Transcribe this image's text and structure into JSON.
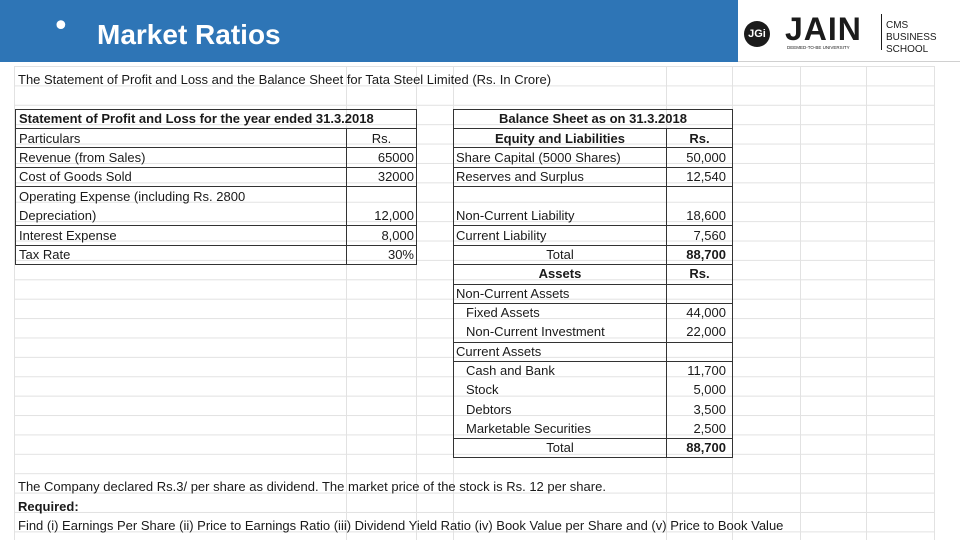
{
  "header": {
    "bullet": "•",
    "title": "Market Ratios"
  },
  "logo": {
    "mark": "JGi",
    "name": "JAIN",
    "tagline": "DEEMED-TO-BE UNIVERSITY",
    "school_line1": "CMS BUSINESS",
    "school_line2": "SCHOOL"
  },
  "intro": "The Statement of Profit and Loss and the Balance Sheet for Tata Steel Limited (Rs. In Crore)",
  "pl": {
    "title": "Statement of Profit and Loss for the year ended 31.3.2018",
    "col_particulars": "Particulars",
    "col_rs": "Rs.",
    "rows": [
      {
        "label": "Revenue (from Sales)",
        "value": "65000"
      },
      {
        "label": "Cost of Goods Sold",
        "value": "32000"
      },
      {
        "label": "Operating Expense (including Rs. 2800",
        "label2": "Depreciation)",
        "value": "12,000"
      },
      {
        "label": "Interest Expense",
        "value": "8,000"
      },
      {
        "label": "Tax Rate",
        "value": "30%"
      }
    ]
  },
  "bs": {
    "title": "Balance Sheet as on 31.3.2018",
    "eq_header": "Equity and Liabilities",
    "col_rs": "Rs.",
    "liabilities": [
      {
        "label": "Share Capital (5000 Shares)",
        "value": "50,000"
      },
      {
        "label": "Reserves and Surplus",
        "value": "12,540"
      },
      {
        "label": "Non-Current Liability",
        "value": "18,600"
      },
      {
        "label": "Current Liability",
        "value": "7,560"
      }
    ],
    "total_label": "Total",
    "total_value": "88,700",
    "assets_header": "Assets",
    "assets_rs": "Rs.",
    "noncurrent_header": "Non-Current Assets",
    "noncurrent": [
      {
        "label": "Fixed Assets",
        "value": "44,000"
      },
      {
        "label": "Non-Current Investment",
        "value": "22,000"
      }
    ],
    "current_header": "Current Assets",
    "current": [
      {
        "label": "Cash and Bank",
        "value": "11,700"
      },
      {
        "label": "Stock",
        "value": "5,000"
      },
      {
        "label": "Debtors",
        "value": "3,500"
      },
      {
        "label": "Marketable Securities",
        "value": "2,500"
      }
    ],
    "assets_total_label": "Total",
    "assets_total_value": "88,700"
  },
  "footer": {
    "dividend_note": "The Company declared Rs.3/ per share as dividend. The market price of the stock is Rs. 12 per share.",
    "required_label": "Required:",
    "required_text": "Find (i) Earnings Per Share  (ii) Price to Earnings Ratio   (iii) Dividend Yield Ratio  (iv) Book Value per Share and (v) Price to Book Value"
  }
}
